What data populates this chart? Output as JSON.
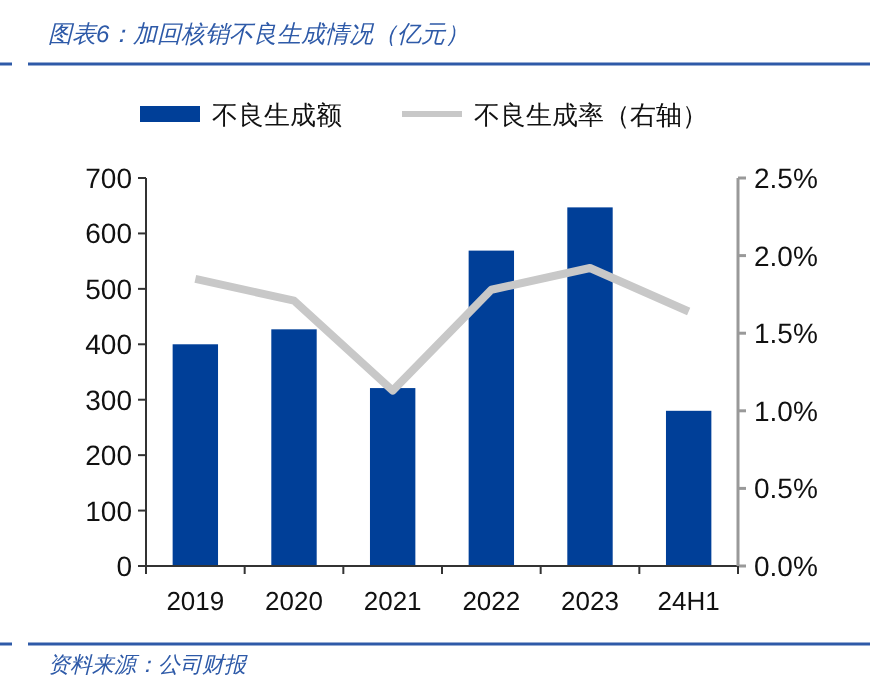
{
  "chart_data": {
    "type": "bar",
    "title": "图表6：加回核销不良生成情况（亿元）",
    "categories": [
      "2019",
      "2020",
      "2021",
      "2022",
      "2023",
      "24H1"
    ],
    "series": [
      {
        "name": "不良生成额",
        "color": "#003f98",
        "values": [
          400,
          427,
          321,
          569,
          647,
          280
        ]
      },
      {
        "name": "不良生成率（右轴）",
        "type": "line",
        "axis": "y2",
        "color": "#c8c8c8",
        "values": [
          1.85,
          1.71,
          1.13,
          1.78,
          1.92,
          1.64
        ]
      }
    ],
    "ylim": [
      0,
      700
    ],
    "yticks": [
      0,
      100,
      200,
      300,
      400,
      500,
      600,
      700
    ],
    "y2lim": [
      0,
      2.5
    ],
    "y2ticks": [
      {
        "value": 0,
        "label": "0.0%"
      },
      {
        "value": 0.5,
        "label": "0.5%"
      },
      {
        "value": 1,
        "label": "1.0%"
      },
      {
        "value": 1.5,
        "label": "1.5%"
      },
      {
        "value": 2,
        "label": "2.0%"
      },
      {
        "value": 2.5,
        "label": "2.5%"
      }
    ],
    "legend": "top",
    "grid": false,
    "marker": "none",
    "line_style": "solid",
    "annotations": [
      "资料来源：公司财报"
    ]
  }
}
